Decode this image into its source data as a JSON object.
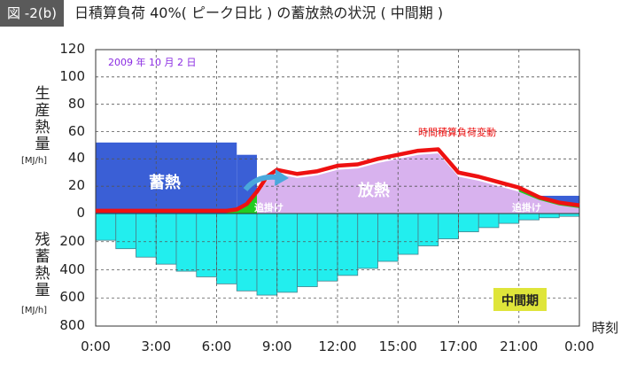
{
  "figure": {
    "badge": "図 -2(b)",
    "title": "日積算負荷 40%( ピーク日比 ) の蓄放熱の状況 ( 中間期 )"
  },
  "chart_data": {
    "type": "bar",
    "date_note": "2009 年 10 月 2 日",
    "season_badge": "中間期",
    "line_label": "時間積算負荷変動",
    "region_labels": {
      "storage": "蓄熱",
      "release": "放熱",
      "chase_left": "追掛け",
      "chase_right": "追掛け"
    },
    "xlabel": "時刻",
    "x_ticks": [
      "0:00",
      "3:00",
      "6:00",
      "9:00",
      "12:00",
      "15:00",
      "17:00",
      "21:00",
      "0:00"
    ],
    "x_range_hours": [
      0,
      24
    ],
    "upper_axis": {
      "label": "生産熱量",
      "unit": "[MJ/h]",
      "ticks": [
        "120",
        "100",
        "80",
        "60",
        "40",
        "20",
        "0"
      ],
      "ylim": [
        0,
        120
      ]
    },
    "lower_axis": {
      "label": "残蓄熱量",
      "unit": "[MJ/h]",
      "ticks": [
        "200",
        "400",
        "600",
        "800"
      ],
      "ylim": [
        0,
        800
      ]
    },
    "storage_production_steps": [
      {
        "start": 0,
        "end": 7,
        "value": 52
      },
      {
        "start": 7,
        "end": 8,
        "value": 43
      },
      {
        "start": 22,
        "end": 24,
        "value": 13
      }
    ],
    "load_curve": {
      "x": [
        0,
        6.5,
        7,
        7.5,
        8,
        8.5,
        9,
        10,
        11,
        12,
        13,
        14,
        15,
        16,
        17,
        18,
        19,
        20,
        21,
        22,
        23,
        24
      ],
      "y": [
        2,
        2,
        3,
        7,
        16,
        27,
        32,
        29,
        31,
        35,
        36,
        40,
        43,
        46,
        47,
        30,
        27,
        23,
        19,
        12,
        8,
        6
      ]
    },
    "release_area": {
      "x": [
        8,
        8.5,
        9,
        10,
        11,
        12,
        13,
        14,
        15,
        16,
        17,
        18,
        19,
        20,
        21,
        22,
        23,
        24
      ],
      "y": [
        14,
        24,
        29,
        26,
        28,
        32,
        33,
        37,
        40,
        43,
        44,
        27,
        24,
        20,
        16,
        10,
        6,
        4
      ]
    },
    "remaining_storage": {
      "x": [
        0,
        1,
        2,
        3,
        4,
        5,
        6,
        7,
        8,
        9,
        10,
        11,
        12,
        13,
        14,
        15,
        16,
        17,
        18,
        19,
        20,
        21,
        22,
        23,
        24
      ],
      "values": [
        190,
        250,
        310,
        360,
        410,
        450,
        500,
        550,
        580,
        560,
        520,
        480,
        440,
        390,
        340,
        290,
        230,
        180,
        130,
        100,
        70,
        45,
        30,
        20,
        10
      ]
    },
    "grid": true,
    "colors": {
      "storage": "#3a5fd6",
      "release": "#d8b2ee",
      "chase": "#22cc22",
      "load_line": "#ee1111",
      "remaining": "#22eeee",
      "badge_bg": "#dfe53a",
      "arrow": "#4aa8dc",
      "date_note": "#8a2be2"
    }
  }
}
